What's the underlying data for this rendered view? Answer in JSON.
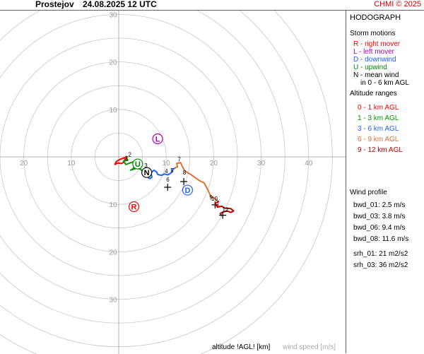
{
  "header": {
    "station": "Prostejov",
    "datetime": "24.08.2025 12 UTC",
    "copyright": "CHMI © 2025"
  },
  "sidebar": {
    "title": "HODOGRAPH",
    "storm_motions_title": "Storm motions",
    "storm_motions": [
      {
        "text": "R - right mover",
        "color": "#ff0000"
      },
      {
        "text": "L - left mover",
        "color": "#b000b0"
      },
      {
        "text": "D - downwind",
        "color": "#2060ff"
      },
      {
        "text": "U - upwind",
        "color": "#008800"
      },
      {
        "text": "N - mean wind",
        "color": "#000000"
      },
      {
        "text": "in 0 - 6 km AGL",
        "color": "#000000"
      }
    ],
    "altitude_title": "Altitude ranges",
    "altitude_ranges": [
      {
        "text": "0 - 1 km AGL",
        "color": "#ff0000"
      },
      {
        "text": "1 - 3 km AGL",
        "color": "#009900"
      },
      {
        "text": "3 - 6 km AGL",
        "color": "#1e64ff"
      },
      {
        "text": "6 - 9 km AGL",
        "color": "#e07030"
      },
      {
        "text": "9 - 12 km AGL",
        "color": "#c00000"
      }
    ],
    "wind_profile_title": "Wind profile",
    "wind_profile": [
      "bwd_01: 2.5 m/s",
      "bwd_03: 3.8 m/s",
      "bwd_06: 9.4 m/s",
      "bwd_08: 11.6 m/s",
      "srh_01: 21 m2/s2",
      "srh_03: 36 m2/s2"
    ]
  },
  "footer": {
    "altitude_label": "altitude !AGL! [km]",
    "speed_label": "wind speed [m/s]"
  },
  "chart_data": {
    "type": "hodograph",
    "rings": [
      5,
      10,
      15,
      20,
      25,
      30,
      35,
      40,
      45
    ],
    "ring_labels_y_up": [
      "10",
      "20",
      "30"
    ],
    "ring_labels_y_down": [
      "10",
      "20",
      "30"
    ],
    "ring_labels_x_left": [
      "20",
      "10"
    ],
    "ring_labels_x_right": [
      "10",
      "20",
      "30",
      "40"
    ],
    "grid": true,
    "segments": [
      {
        "name": "0 - 1 km AGL",
        "color": "#ff0000",
        "points": [
          [
            1.8,
            0.0
          ],
          [
            0.3,
            -0.5
          ],
          [
            -0.5,
            -1.0
          ],
          [
            -0.8,
            -1.6
          ],
          [
            -0.2,
            -1.3
          ],
          [
            0.6,
            -1.4
          ],
          [
            1.1,
            -1.1
          ],
          [
            1.3,
            -0.6
          ],
          [
            1.6,
            -0.1
          ]
        ]
      },
      {
        "name": "1 - 3 km AGL",
        "color": "#009900",
        "points": [
          [
            1.6,
            -0.1
          ],
          [
            1.9,
            -0.7
          ],
          [
            1.0,
            -0.9
          ],
          [
            1.5,
            -1.6
          ],
          [
            2.6,
            -1.2
          ],
          [
            3.6,
            -0.9
          ],
          [
            3.6,
            -1.8
          ],
          [
            3.0,
            -2.5
          ],
          [
            2.5,
            -2.8
          ],
          [
            3.8,
            -2.4
          ],
          [
            4.6,
            -2.6
          ],
          [
            5.0,
            -3.0
          ]
        ]
      },
      {
        "name": "3 - 6 km AGL",
        "color": "#1e64ff",
        "points": [
          [
            5.0,
            -3.0
          ],
          [
            5.3,
            -3.6
          ],
          [
            5.8,
            -4.0
          ],
          [
            6.5,
            -4.6
          ],
          [
            7.0,
            -4.3
          ],
          [
            6.8,
            -3.4
          ],
          [
            7.4,
            -2.8
          ],
          [
            8.0,
            -3.2
          ],
          [
            8.2,
            -3.7
          ],
          [
            9.0,
            -3.9
          ],
          [
            9.6,
            -3.6
          ],
          [
            10.4,
            -3.8
          ],
          [
            11.1,
            -3.3
          ],
          [
            11.4,
            -2.6
          ],
          [
            11.9,
            -2.3
          ]
        ]
      },
      {
        "name": "6 - 9 km AGL",
        "color": "#e07030",
        "points": [
          [
            11.9,
            -2.3
          ],
          [
            12.4,
            -2.1
          ],
          [
            12.2,
            -1.4
          ],
          [
            13.0,
            -1.2
          ],
          [
            13.4,
            -2.0
          ],
          [
            13.8,
            -2.8
          ],
          [
            14.3,
            -3.2
          ],
          [
            15.0,
            -3.6
          ],
          [
            16.0,
            -4.3
          ],
          [
            17.0,
            -5.0
          ],
          [
            18.0,
            -5.5
          ],
          [
            18.8,
            -7.0
          ],
          [
            19.4,
            -8.4
          ],
          [
            20.3,
            -8.8
          ],
          [
            21.0,
            -9.4
          ]
        ]
      },
      {
        "name": "9 - 12 km AGL",
        "color": "#c00000",
        "points": [
          [
            21.0,
            -9.4
          ],
          [
            20.3,
            -9.8
          ],
          [
            20.8,
            -10.6
          ],
          [
            21.7,
            -10.4
          ],
          [
            22.4,
            -10.8
          ],
          [
            23.6,
            -10.9
          ],
          [
            24.2,
            -11.4
          ],
          [
            23.6,
            -11.7
          ],
          [
            22.8,
            -11.4
          ],
          [
            22.0,
            -11.6
          ],
          [
            21.4,
            -11.9
          ],
          [
            21.6,
            -12.3
          ]
        ]
      }
    ],
    "height_labels": [
      {
        "text": "1",
        "x": 1.3,
        "y": -0.7,
        "color": "#000000"
      },
      {
        "text": "2",
        "x": 2.0,
        "y": 0.1,
        "color": "#000000"
      },
      {
        "text": "3",
        "x": 5.4,
        "y": -2.2,
        "color": "#000000"
      },
      {
        "text": "4",
        "x": 9.7,
        "y": -3.4,
        "color": "#000000"
      },
      {
        "text": "5",
        "x": 10.9,
        "y": -3.3,
        "color": "#000000"
      },
      {
        "text": "6",
        "x": 10.0,
        "y": -5.2,
        "color": "#000000"
      },
      {
        "text": "7",
        "x": 12.4,
        "y": -1.0,
        "color": "#000000"
      },
      {
        "text": "8",
        "x": 13.5,
        "y": -3.7,
        "color": "#000000"
      },
      {
        "text": "9",
        "x": 19.1,
        "y": -8.9,
        "color": "#000000"
      },
      {
        "text": "10",
        "x": 19.5,
        "y": -9.2,
        "color": "#000000"
      },
      {
        "text": "11",
        "x": 20.0,
        "y": -10.4,
        "color": "#ff0000"
      },
      {
        "text": "12",
        "x": 21.8,
        "y": -11.5,
        "color": "#000000"
      }
    ],
    "crosses": [
      {
        "x": 10.3,
        "y": -6.4,
        "color": "#000000"
      },
      {
        "x": 13.7,
        "y": -5.2,
        "color": "#000000"
      },
      {
        "x": 20.3,
        "y": -10.1,
        "color": "#000000"
      },
      {
        "x": 21.9,
        "y": -12.3,
        "color": "#000000"
      }
    ],
    "storm_motions": [
      {
        "letter": "R",
        "x": 3.2,
        "y": -10.5,
        "color": "#ff0000"
      },
      {
        "letter": "L",
        "x": 8.2,
        "y": 3.8,
        "color": "#b000b0"
      },
      {
        "letter": "D",
        "x": 14.5,
        "y": -7.0,
        "color": "#2060ff"
      },
      {
        "letter": "U",
        "x": 4.0,
        "y": -1.5,
        "color": "#008800"
      },
      {
        "letter": "N",
        "x": 5.9,
        "y": -3.3,
        "color": "#000000"
      }
    ]
  }
}
